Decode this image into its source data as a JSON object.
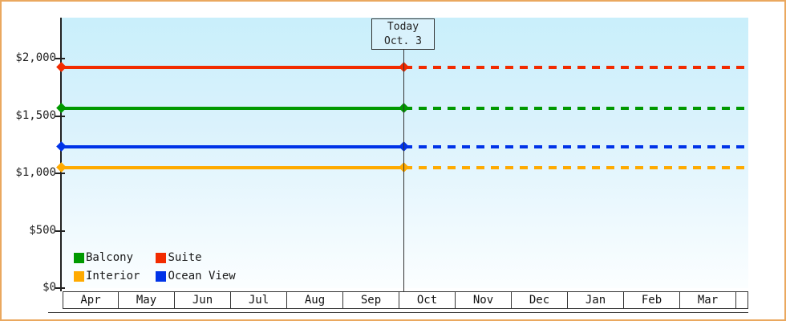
{
  "frame": {
    "border_color": "#eaa85f",
    "background": "#ffffff"
  },
  "today_box": {
    "line1": "Today",
    "line2": "Oct. 3"
  },
  "legend": {
    "items": [
      {
        "label": "Balcony",
        "color": "#009900"
      },
      {
        "label": "Suite",
        "color": "#f22b00"
      },
      {
        "label": "Interior",
        "color": "#ffaa00"
      },
      {
        "label": "Ocean View",
        "color": "#0033e8"
      }
    ]
  },
  "chart_data": {
    "type": "line",
    "description": "Cruise cabin price history by month; flat price lines drawn solid up to today (Oct. 3) and dashed (projected) afterwards",
    "categories": [
      "Apr",
      "May",
      "Jun",
      "Jul",
      "Aug",
      "Sep",
      "Oct",
      "Nov",
      "Dec",
      "Jan",
      "Feb",
      "Mar"
    ],
    "series": [
      {
        "name": "Suite",
        "color": "#f22b00",
        "value": 1925
      },
      {
        "name": "Balcony",
        "color": "#009900",
        "value": 1565
      },
      {
        "name": "Ocean View",
        "color": "#0033e8",
        "value": 1230
      },
      {
        "name": "Interior",
        "color": "#ffaa00",
        "value": 1050
      }
    ],
    "ylim": [
      0,
      2000
    ],
    "yticks": [
      {
        "label": "$0",
        "value": 0
      },
      {
        "label": "$500",
        "value": 500
      },
      {
        "label": "$1,000",
        "value": 1000
      },
      {
        "label": "$1,500",
        "value": 1500
      },
      {
        "label": "$2,000",
        "value": 2000
      }
    ],
    "today": {
      "label": "Today",
      "date": "Oct. 3",
      "month_index": 6,
      "day_fraction": 0.08
    },
    "legend_position": "inside-bottom-left",
    "grid": false
  }
}
